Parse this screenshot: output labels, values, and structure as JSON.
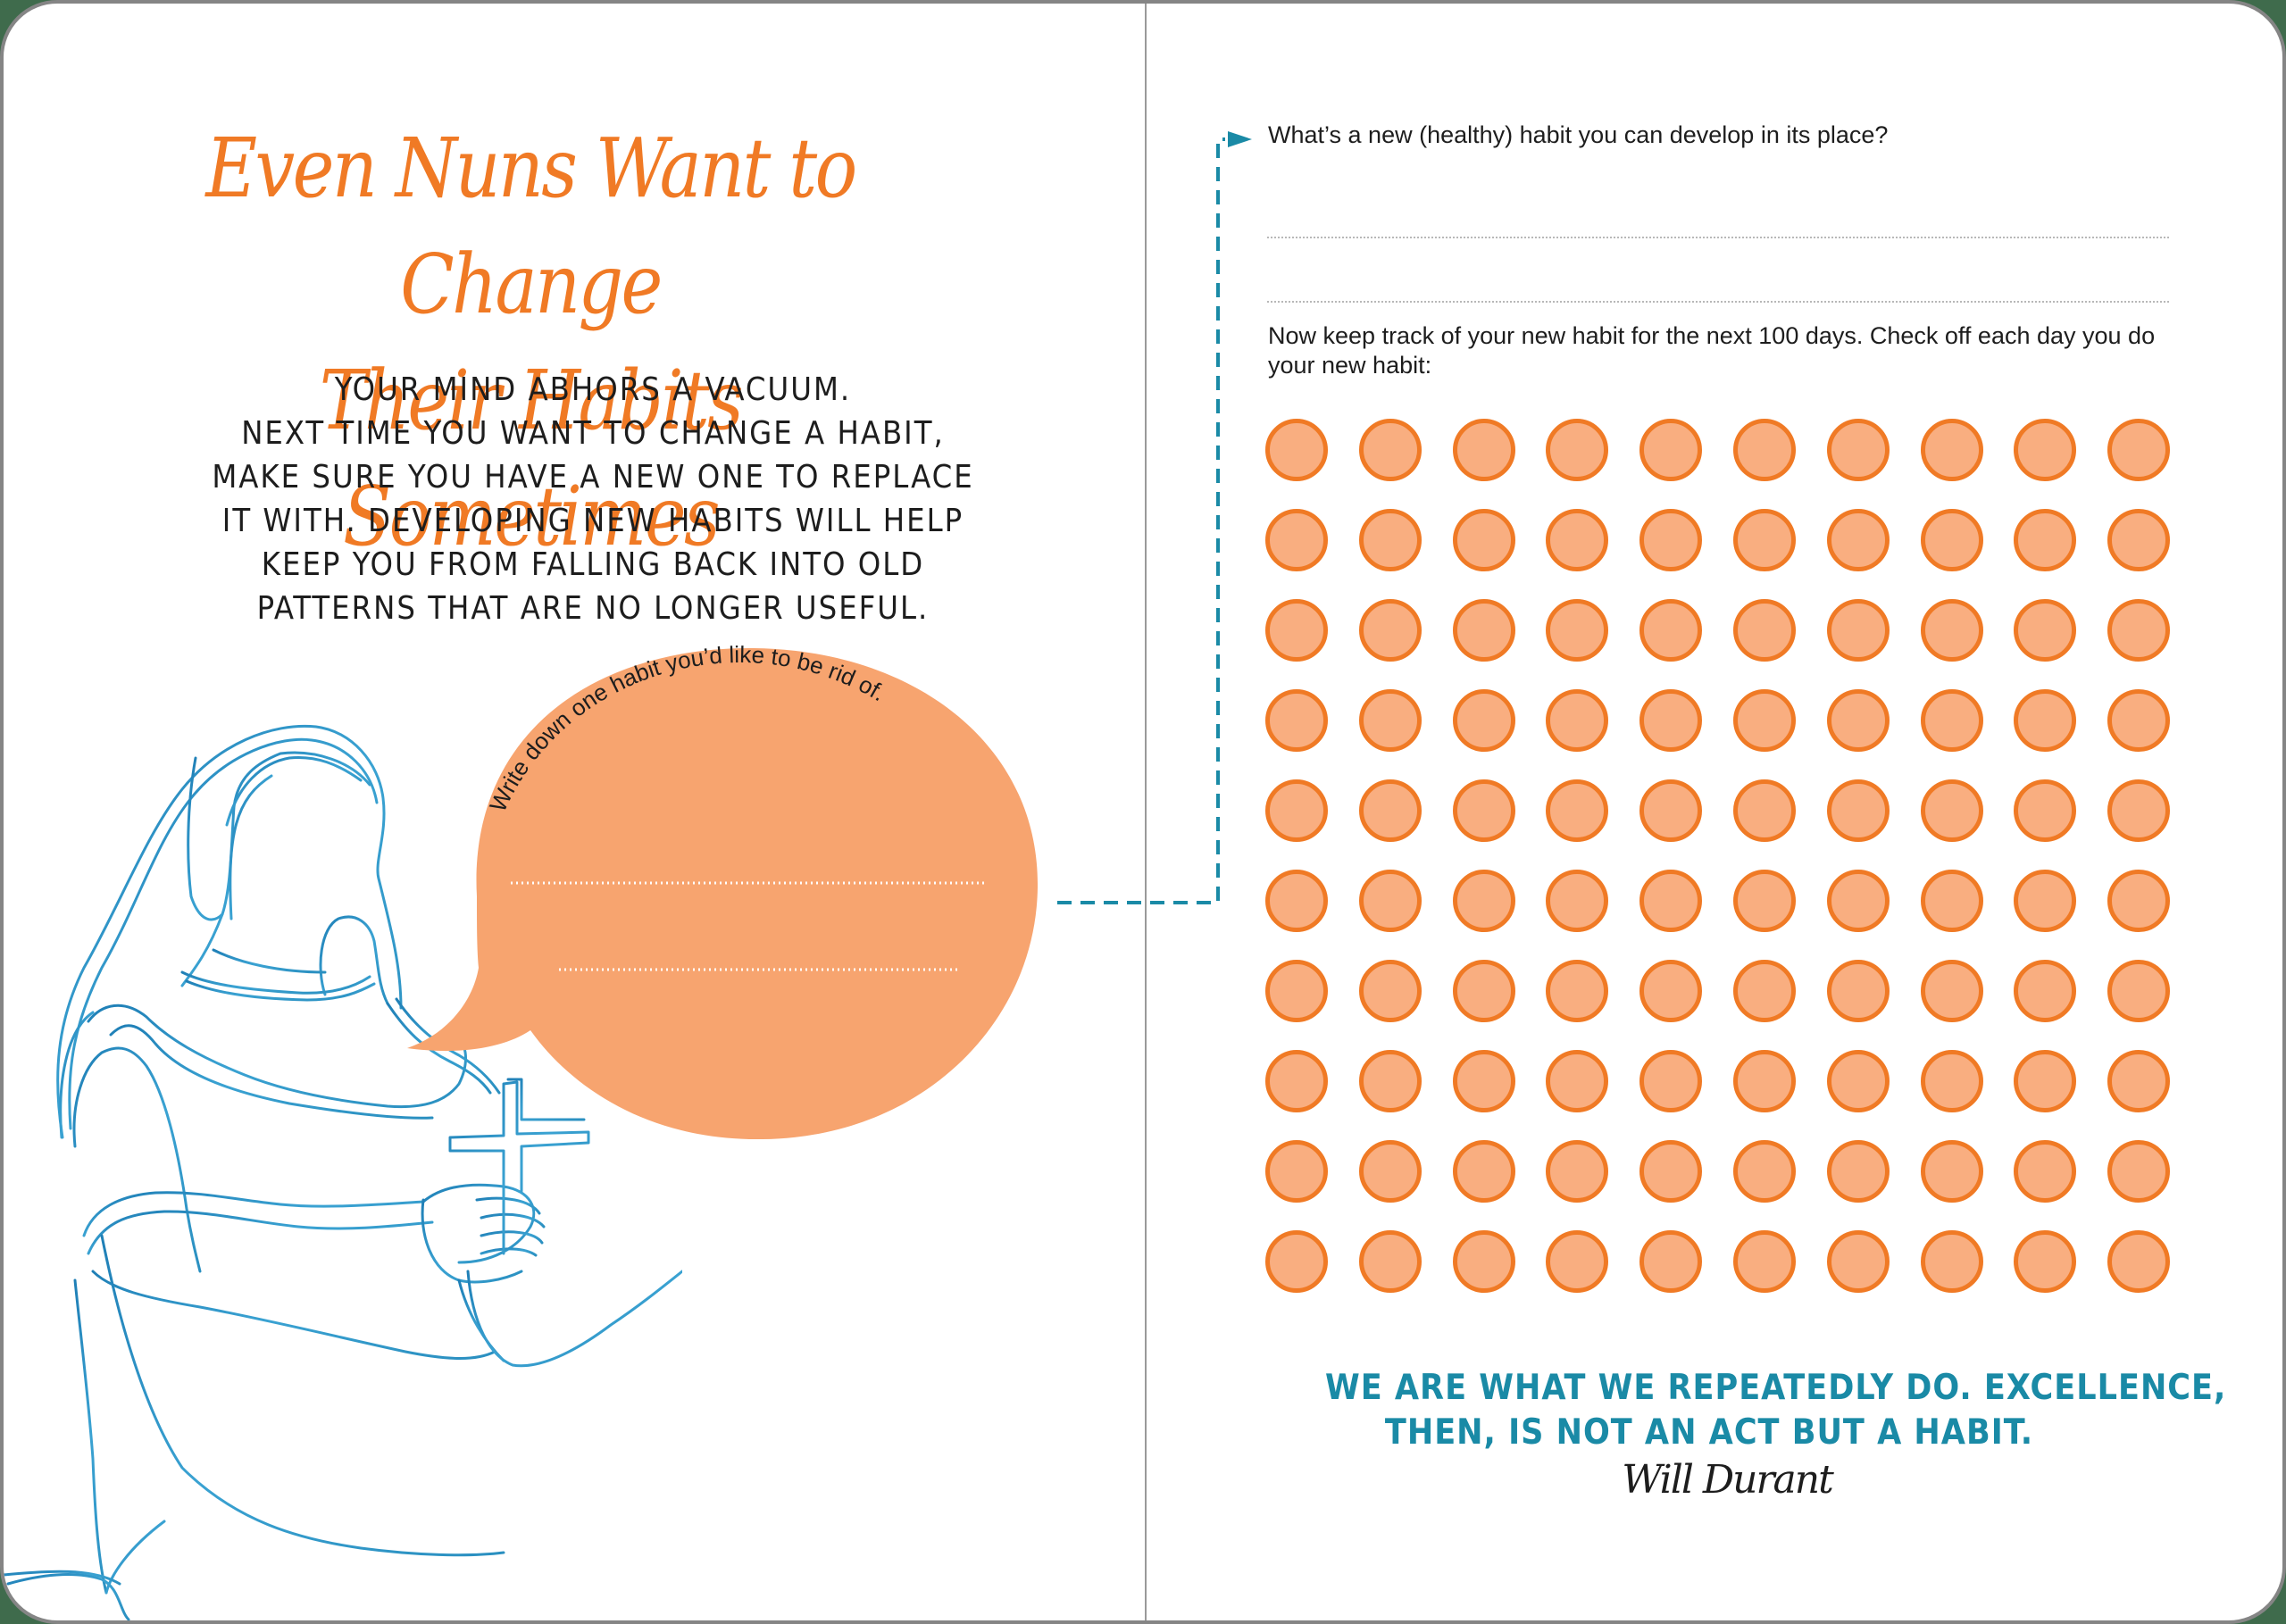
{
  "left_page": {
    "title_lines": [
      "Even Nuns Want to Change",
      "Their Habits Sometimes"
    ],
    "intro_lines": [
      "Your mind abhors a vacuum.",
      "Next time you want to change a habit,",
      "make sure you have a new one to replace",
      "it with. Developing new habits will help",
      "keep you from falling back into old",
      "patterns that are no longer useful."
    ],
    "bubble": {
      "prompt": "Write down one habit you’d like to be rid of.",
      "answer_lines": 2,
      "fill_color": "#f7a46f"
    },
    "illustration": "nun-holding-cross-line-drawing"
  },
  "right_page": {
    "question": "What’s a new (healthy) habit you can develop in its place?",
    "answer_lines": 2,
    "instructions": "Now keep track of your new habit for the next 100 days. Check off each day you do your new habit:",
    "tracker": {
      "rows": 10,
      "columns": 10,
      "total_days": 100,
      "checked_days": 0,
      "circle_fill": "#f9ae80",
      "circle_stroke": "#f07a25"
    },
    "quote_lines": [
      "WE ARE WHAT WE REPEATEDLY DO. EXCELLENCE,",
      "THEN, IS NOT AN ACT BUT A HABIT."
    ],
    "quote_author": "Will Durant"
  },
  "colors": {
    "accent_orange": "#f07a25",
    "accent_teal": "#1a8aa6",
    "text": "#1d1d1d",
    "page_border": "#858585"
  }
}
